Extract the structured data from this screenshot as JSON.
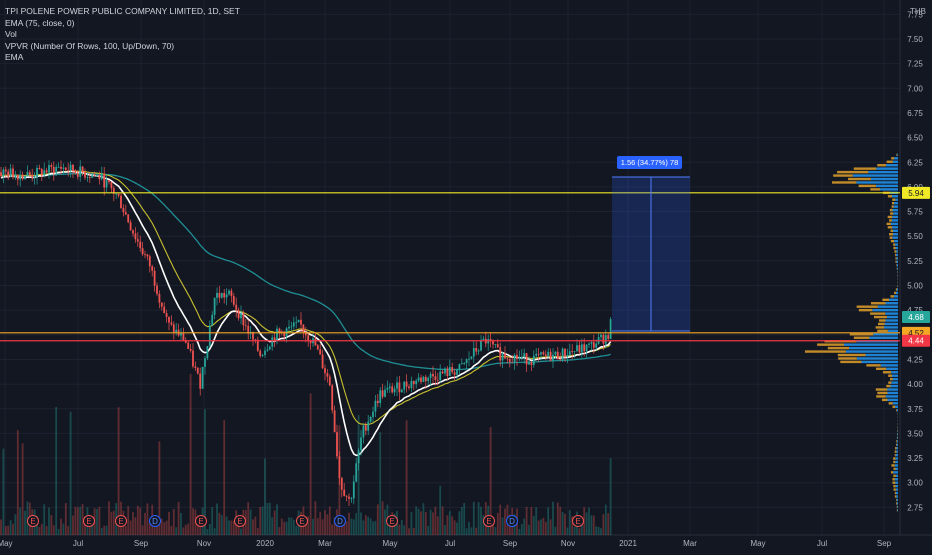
{
  "legend": {
    "title": "TPI POLENE POWER PUBLIC COMPANY LIMITED, 1D, SET",
    "ema75": "EMA (75, close, 0)",
    "vol": "Vol",
    "vpvr": "VPVR (Number Of Rows, 100, Up/Down, 70)",
    "ema": "EMA"
  },
  "currency": "THB",
  "price_axis": {
    "ticks": [
      "7.75",
      "7.50",
      "7.25",
      "7.00",
      "6.75",
      "6.50",
      "6.25",
      "6.00",
      "5.75",
      "5.50",
      "5.25",
      "5.00",
      "4.75",
      "4.50",
      "4.25",
      "4.00",
      "3.75",
      "3.50",
      "3.25",
      "3.00",
      "2.75"
    ],
    "labels": [
      {
        "text": "5.94",
        "bg": "#f0ea26",
        "fg": "#131722"
      },
      {
        "text": "4.68",
        "bg": "#26a69a",
        "fg": "#ffffff"
      },
      {
        "text": "4.52",
        "bg": "#f5a623",
        "fg": "#131722"
      },
      {
        "text": "4.44",
        "bg": "#f23645",
        "fg": "#ffffff"
      }
    ]
  },
  "time_axis": [
    "May",
    "Jul",
    "Sep",
    "Nov",
    "2020",
    "Mar",
    "May",
    "Jul",
    "Sep",
    "Nov",
    "2021",
    "Mar",
    "May",
    "Jul",
    "Sep"
  ],
  "events": [
    "E",
    "E",
    "E",
    "D",
    "E",
    "E",
    "E",
    "D",
    "E",
    "E",
    "D",
    "E"
  ],
  "measure": {
    "label": "1.56 (34.77%) 78"
  },
  "horizontal_lines": [
    {
      "price": 5.94,
      "color": "#f0ea26"
    },
    {
      "price": 4.52,
      "color": "#f5a623"
    },
    {
      "price": 4.44,
      "color": "#f23645"
    }
  ],
  "colors": {
    "background": "#131722",
    "up": "#26a69a",
    "down": "#ef5350",
    "ema_fast": "#ffffff",
    "ema_mid": "#c9c130",
    "ema_slow": "#1f8f94",
    "vp_up": "#2196f3",
    "vp_down": "#e0a02a"
  }
}
